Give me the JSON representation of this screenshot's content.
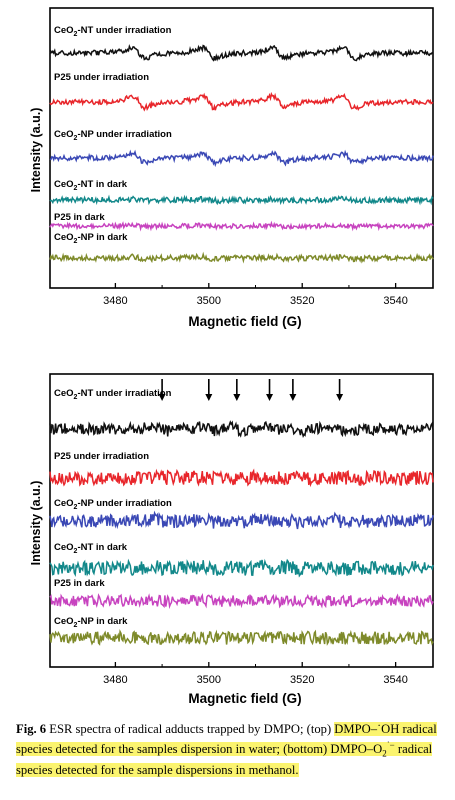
{
  "chart_data": [
    {
      "type": "line",
      "ylabel": "Intensity (a.u.)",
      "xlabel": "Magnetic field (G)",
      "xlim": [
        3466,
        3548
      ],
      "xticks": [
        3480,
        3500,
        3520,
        3540
      ],
      "grid": false,
      "series": [
        {
          "name": "CeO2-NT under irradiation",
          "label_main": "CeO",
          "label_sub": "2",
          "label_rest": "-NT under irradiation",
          "color": "#111111",
          "noise": 0.5,
          "scale": 1.0,
          "lines": [
            3485,
            3500,
            3515,
            3530
          ]
        },
        {
          "name": "P25 under irradiation",
          "label_main": "P25 under irradiation",
          "label_sub": "",
          "label_rest": "",
          "color": "#e8262b",
          "noise": 0.5,
          "scale": 1.1,
          "lines": [
            3485,
            3500,
            3515,
            3530
          ]
        },
        {
          "name": "CeO2-NP under irradiation",
          "label_main": "CeO",
          "label_sub": "2",
          "label_rest": "-NP under irradiation",
          "color": "#3a48b5",
          "noise": 0.5,
          "scale": 0.8,
          "lines": [
            3485,
            3500,
            3515,
            3530
          ]
        },
        {
          "name": "CeO2-NT in dark",
          "label_main": "CeO",
          "label_sub": "2",
          "label_rest": "-NT in dark",
          "color": "#12888a",
          "noise": 0.55,
          "scale": 0.15,
          "lines": [
            3485,
            3500,
            3515,
            3530
          ]
        },
        {
          "name": "P25 in dark",
          "label_main": "P25 in dark",
          "label_sub": "",
          "label_rest": "",
          "color": "#c743bf",
          "noise": 0.45,
          "scale": 0.15,
          "lines": [
            3485,
            3500,
            3515,
            3530
          ]
        },
        {
          "name": "CeO2-NP in dark",
          "label_main": "CeO",
          "label_sub": "2",
          "label_rest": "-NP in dark",
          "color": "#7e8a2a",
          "noise": 0.55,
          "scale": 0.2,
          "lines": [
            3485,
            3500,
            3515,
            3530
          ]
        }
      ]
    },
    {
      "type": "line",
      "ylabel": "Intensity (a.u.)",
      "xlabel": "Magnetic field (G)",
      "xlim": [
        3466,
        3548
      ],
      "xticks": [
        3480,
        3500,
        3520,
        3540
      ],
      "grid": false,
      "arrows": [
        3490,
        3500,
        3506,
        3513,
        3518,
        3528
      ],
      "series": [
        {
          "name": "CeO2-NT under irradiation",
          "label_main": "CeO",
          "label_sub": "2",
          "label_rest": "-NT under irradiation",
          "color": "#111111",
          "noise": 0.7,
          "scale": 0.4,
          "lines": [
            3490,
            3500,
            3506,
            3513,
            3518,
            3528
          ]
        },
        {
          "name": "P25 under irradiation",
          "label_main": "P25 under irradiation",
          "label_sub": "",
          "label_rest": "",
          "color": "#e8262b",
          "noise": 0.9,
          "scale": 0.05,
          "lines": [
            3500,
            3513
          ]
        },
        {
          "name": "CeO2-NP under irradiation",
          "label_main": "CeO",
          "label_sub": "2",
          "label_rest": "-NP under irradiation",
          "color": "#3a48b5",
          "noise": 0.8,
          "scale": 0.3,
          "lines": [
            3490,
            3500,
            3506,
            3513,
            3518,
            3528
          ]
        },
        {
          "name": "CeO2-NT in dark",
          "label_main": "CeO",
          "label_sub": "2",
          "label_rest": "-NT in dark",
          "color": "#12888a",
          "noise": 0.9,
          "scale": 0.2,
          "lines": [
            3490,
            3500,
            3506,
            3513,
            3518,
            3528
          ]
        },
        {
          "name": "P25 in dark",
          "label_main": "P25 in dark",
          "label_sub": "",
          "label_rest": "",
          "color": "#c743bf",
          "noise": 0.7,
          "scale": 0.05,
          "lines": [
            3500,
            3513
          ]
        },
        {
          "name": "CeO2-NP in dark",
          "label_main": "CeO",
          "label_sub": "2",
          "label_rest": "-NP in dark",
          "color": "#7e8a2a",
          "noise": 0.8,
          "scale": 0.05,
          "lines": [
            3500,
            3513
          ]
        }
      ]
    }
  ],
  "caption": {
    "fig_label": "Fig. 6",
    "text_plain": "ESR spectra of radical adducts trapped by DMPO; (top)",
    "text_hl1": "DMPO–˙OH radical species detected for the samples dispersion in water; (bottom) DMPO–O",
    "text_hl_sub": "2",
    "text_hl_sup": "˙−",
    "text_hl2": " radical species detected for the sample dispersions in methanol."
  }
}
